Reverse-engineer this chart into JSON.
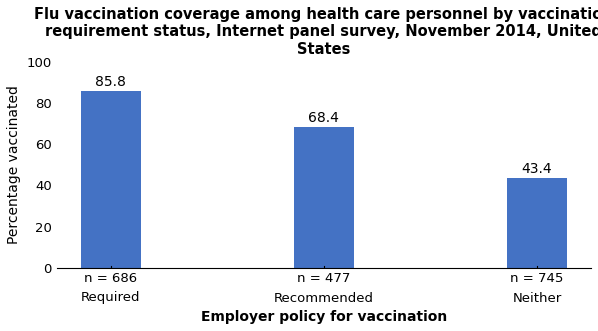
{
  "title": "Flu vaccination coverage among health care personnel by vaccination\nrequirement status, Internet panel survey, November 2014, United\nStates",
  "categories": [
    "Required",
    "Recommended",
    "Neither"
  ],
  "sample_sizes": [
    "n = 686",
    "n = 477",
    "n = 745"
  ],
  "values": [
    85.8,
    68.4,
    43.4
  ],
  "bar_color": "#4472C4",
  "ylabel": "Percentage vaccinated",
  "xlabel": "Employer policy for vaccination",
  "ylim": [
    0,
    100
  ],
  "yticks": [
    0,
    20,
    40,
    60,
    80,
    100
  ],
  "title_fontsize": 10.5,
  "label_fontsize": 10,
  "tick_fontsize": 9.5,
  "annotation_fontsize": 10,
  "background_color": "#ffffff",
  "bar_width": 0.28,
  "figsize": [
    5.98,
    3.31
  ],
  "dpi": 100
}
